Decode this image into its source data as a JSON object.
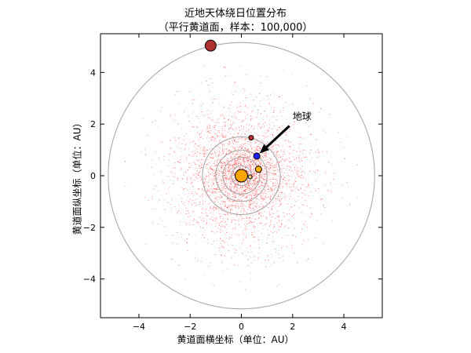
{
  "chart_data": {
    "type": "scatter",
    "title": "近地天体绕日位置分布",
    "subtitle": "（平行黄道面，样本：100,000）",
    "xlabel": "黄道面横坐标（单位：AU）",
    "ylabel": "黄道面纵坐标（单位：AU）",
    "xlim": [
      -5.5,
      5.5
    ],
    "ylim": [
      -5.5,
      5.5
    ],
    "xticks": [
      -4,
      -2,
      0,
      2,
      4
    ],
    "yticks": [
      -4,
      -2,
      0,
      2,
      4
    ],
    "xtick_labels": [
      "−4",
      "−2",
      "0",
      "2",
      "4"
    ],
    "ytick_labels": [
      "−4",
      "−2",
      "0",
      "2",
      "4"
    ],
    "grid": false,
    "neo_sample_size": 100000,
    "neo_color": "#ff2020",
    "orbits": [
      {
        "body": "Mercury",
        "radius": 0.39
      },
      {
        "body": "Venus",
        "radius": 0.72
      },
      {
        "body": "Earth",
        "radius": 1.0
      },
      {
        "body": "Mars",
        "radius": 1.52
      },
      {
        "body": "Jupiter",
        "radius": 5.2
      }
    ],
    "orbit_color": "#aaaaaa",
    "bodies": [
      {
        "name": "Sun",
        "x": 0.0,
        "y": 0.0,
        "color": "#ffa500",
        "size": 8
      },
      {
        "name": "Mercury",
        "x": 0.34,
        "y": -0.04,
        "color": "#ffd27f",
        "size": 2.5
      },
      {
        "name": "Venus",
        "x": 0.67,
        "y": 0.25,
        "color": "#ffb000",
        "size": 4
      },
      {
        "name": "Earth",
        "x": 0.6,
        "y": 0.76,
        "color": "#1f1fff",
        "size": 4
      },
      {
        "name": "Mars",
        "x": 0.38,
        "y": 1.47,
        "color": "#c03030",
        "size": 3
      },
      {
        "name": "Jupiter",
        "x": -1.2,
        "y": 5.04,
        "color": "#b03030",
        "size": 7
      }
    ],
    "annotations": [
      {
        "text": "地球",
        "xy": [
          0.6,
          0.76
        ],
        "xytext": [
          2.0,
          2.05
        ]
      }
    ]
  }
}
